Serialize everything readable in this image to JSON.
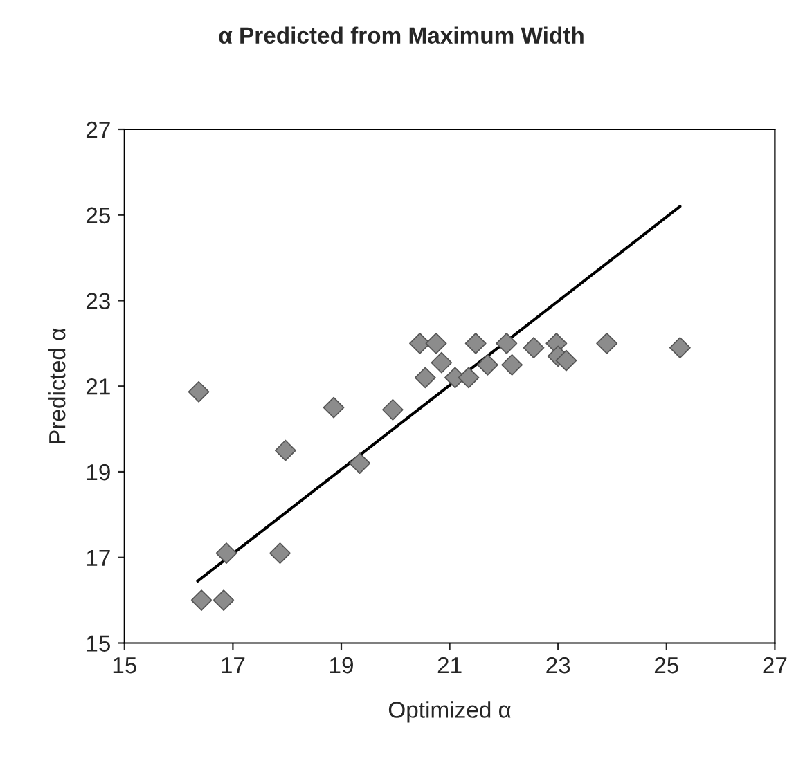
{
  "chart_data": {
    "type": "scatter",
    "title": "α Predicted from Maximum Width",
    "xlabel": "Optimized α",
    "ylabel": "Predicted α",
    "xlim": [
      15,
      27
    ],
    "ylim": [
      15,
      27
    ],
    "xticks": [
      15,
      17,
      19,
      21,
      23,
      25,
      27
    ],
    "yticks": [
      15,
      17,
      19,
      21,
      23,
      25,
      27
    ],
    "grid": false,
    "legend": false,
    "series": [
      {
        "marker": "diamond",
        "color": "#8c8c8c",
        "x": [
          16.37,
          16.42,
          16.83,
          16.88,
          17.87,
          17.97,
          18.86,
          19.34,
          19.95,
          20.45,
          20.75,
          20.85,
          20.55,
          21.1,
          21.35,
          21.48,
          21.7,
          22.05,
          22.15,
          22.55,
          22.97,
          23.0,
          23.15,
          23.9,
          25.25
        ],
        "values": [
          20.87,
          16.0,
          16.0,
          17.1,
          17.1,
          19.5,
          20.5,
          19.2,
          20.45,
          22.0,
          22.0,
          21.55,
          21.2,
          21.2,
          21.2,
          22.0,
          21.5,
          22.0,
          21.5,
          21.9,
          22.0,
          21.7,
          21.6,
          22.0,
          21.9
        ]
      },
      {
        "type": "line",
        "color": "#000000",
        "x": [
          16.35,
          25.25
        ],
        "values": [
          16.45,
          25.2
        ]
      }
    ]
  }
}
